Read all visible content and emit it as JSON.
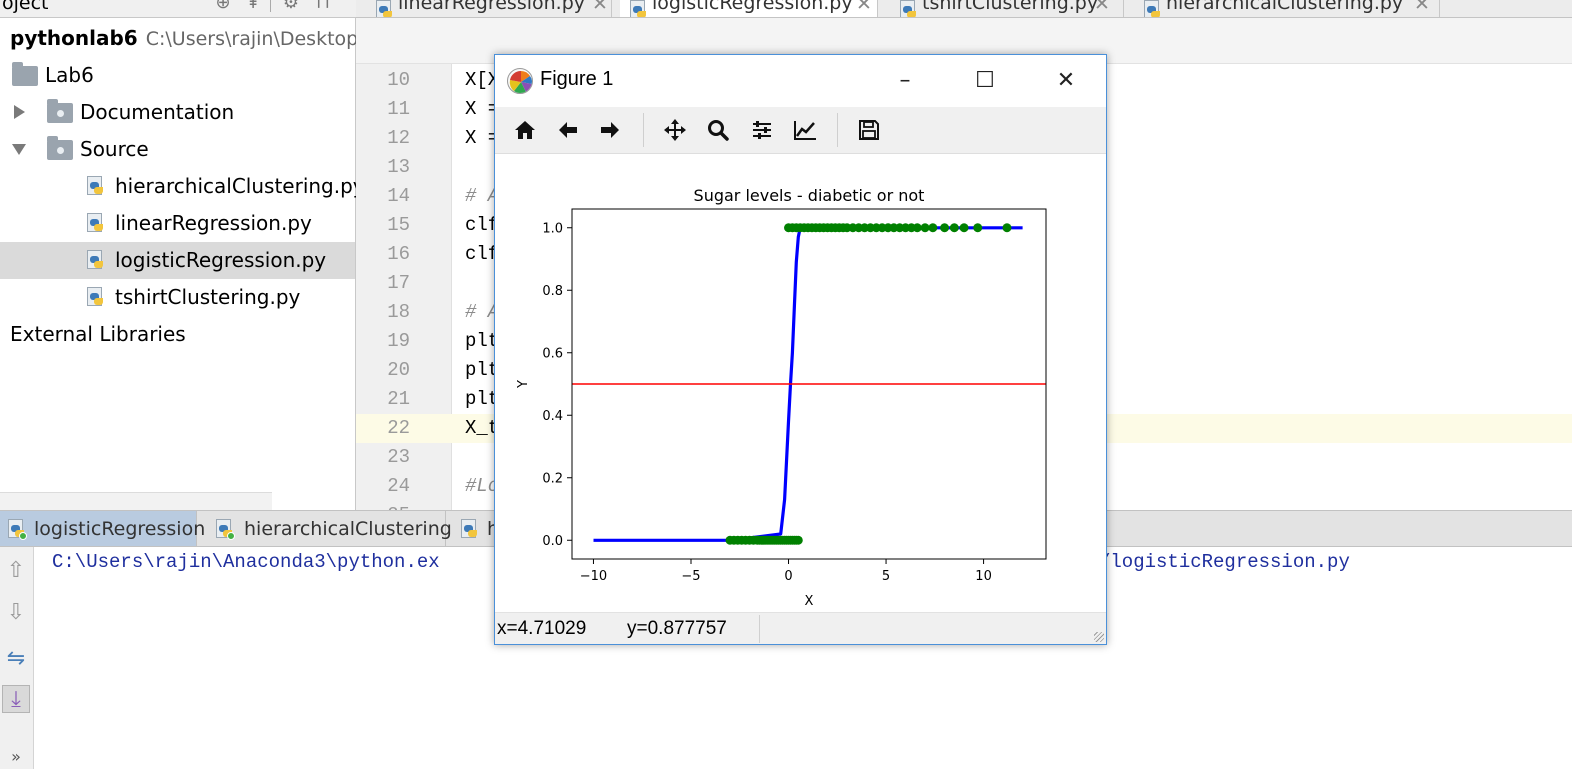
{
  "top_strip": {
    "project_label": "oject",
    "tools": [
      "globe-icon",
      "pin-icon",
      "gear-icon",
      "hide-icon"
    ]
  },
  "editor_tabs": [
    {
      "label": "linearRegression.py",
      "active": false
    },
    {
      "label": "logisticRegression.py",
      "active": true
    },
    {
      "label": "tshirtClustering.py",
      "active": false
    },
    {
      "label": "hierarchicalClustering.py",
      "active": false
    }
  ],
  "project_tree": {
    "root_name": "pythonlab6",
    "root_path": "C:\\Users\\rajin\\Desktop\\p",
    "folder": "Lab6",
    "subfolders": [
      "Documentation",
      "Source"
    ],
    "files": [
      "hierarchicalClustering.py",
      "linearRegression.py",
      "logisticRegression.py",
      "tshirtClustering.py"
    ],
    "selected_file": "logisticRegression.py",
    "external": "External Libraries"
  },
  "code_lines": [
    {
      "n": "10",
      "text": "X[X"
    },
    {
      "n": "11",
      "text": "X ="
    },
    {
      "n": "12",
      "text": "X ="
    },
    {
      "n": "13",
      "text": ""
    },
    {
      "n": "14",
      "text": "# A"
    },
    {
      "n": "15",
      "text": "clf"
    },
    {
      "n": "16",
      "text": "clf"
    },
    {
      "n": "17",
      "text": ""
    },
    {
      "n": "18",
      "text": "# A"
    },
    {
      "n": "19",
      "text": "plt"
    },
    {
      "n": "20",
      "text": "plt"
    },
    {
      "n": "21",
      "text": "plt"
    },
    {
      "n": "22",
      "text": "X_t"
    },
    {
      "n": "23",
      "text": ""
    },
    {
      "n": "24",
      "text": "#Lo"
    },
    {
      "n": "25",
      "text": ""
    }
  ],
  "current_line": "22",
  "run_tabs": [
    {
      "label": "logisticRegression",
      "active": true
    },
    {
      "label": "hierarchicalClustering",
      "active": false
    },
    {
      "label": "h",
      "active": false
    }
  ],
  "console": {
    "text_left": "C:\\Users\\rajin\\Anaconda3\\python.ex",
    "text_right": "/logisticRegression.py"
  },
  "figure": {
    "window_title": "Figure 1",
    "toolbar": [
      "home-icon",
      "back-icon",
      "forward-icon",
      "pan-icon",
      "zoom-icon",
      "subplots-icon",
      "customize-icon",
      "save-icon"
    ],
    "status_x": "x=4.71029",
    "status_y": "y=0.877757"
  },
  "chart_data": {
    "type": "line",
    "title": "Sugar levels - diabetic or not",
    "xlabel": "X",
    "ylabel": "Y",
    "xlim": [
      -11.1,
      13.2
    ],
    "ylim": [
      -0.06,
      1.06
    ],
    "x_ticks": [
      -10,
      -5,
      0,
      5,
      10
    ],
    "x_tick_labels": [
      "−10",
      "−5",
      "0",
      "5",
      "10"
    ],
    "y_ticks": [
      0.0,
      0.2,
      0.4,
      0.6,
      0.8,
      1.0
    ],
    "y_tick_labels": [
      "0.0",
      "0.2",
      "0.4",
      "0.6",
      "0.8",
      "1.0"
    ],
    "grid": false,
    "series": [
      {
        "kind": "line",
        "color": "#0000ff",
        "x": [
          -10,
          -3.0,
          -0.4,
          -0.2,
          0.0,
          0.1,
          0.2,
          0.3,
          0.4,
          0.5,
          0.6,
          12
        ],
        "y": [
          0.0,
          0.0,
          0.02,
          0.13,
          0.38,
          0.5,
          0.6,
          0.75,
          0.89,
          0.97,
          1.0,
          1.0
        ]
      },
      {
        "kind": "hline",
        "color": "#ff0000",
        "y": 0.5
      },
      {
        "kind": "scatter",
        "color": "#008000",
        "x": [
          -3.0,
          -2.8,
          -2.6,
          -2.4,
          -2.2,
          -2.0,
          -1.8,
          -1.6,
          -1.5,
          -1.4,
          -1.3,
          -1.2,
          -1.1,
          -1.0,
          -0.9,
          -0.8,
          -0.7,
          -0.6,
          -0.5,
          -0.4,
          -0.3,
          -0.2,
          -0.1,
          0.0,
          0.1,
          0.2,
          0.3,
          0.4,
          0.5
        ],
        "y": 0.0
      },
      {
        "kind": "scatter",
        "color": "#008000",
        "x": [
          0.0,
          0.2,
          0.4,
          0.6,
          0.8,
          1.0,
          1.2,
          1.4,
          1.6,
          1.8,
          2.0,
          2.2,
          2.4,
          2.6,
          2.8,
          3.0,
          3.3,
          3.6,
          3.9,
          4.2,
          4.5,
          4.8,
          5.1,
          5.4,
          5.7,
          6.0,
          6.3,
          6.6,
          7.0,
          7.4,
          8.0,
          8.5,
          9.0,
          9.7,
          11.2
        ],
        "y": 1.0
      }
    ]
  }
}
